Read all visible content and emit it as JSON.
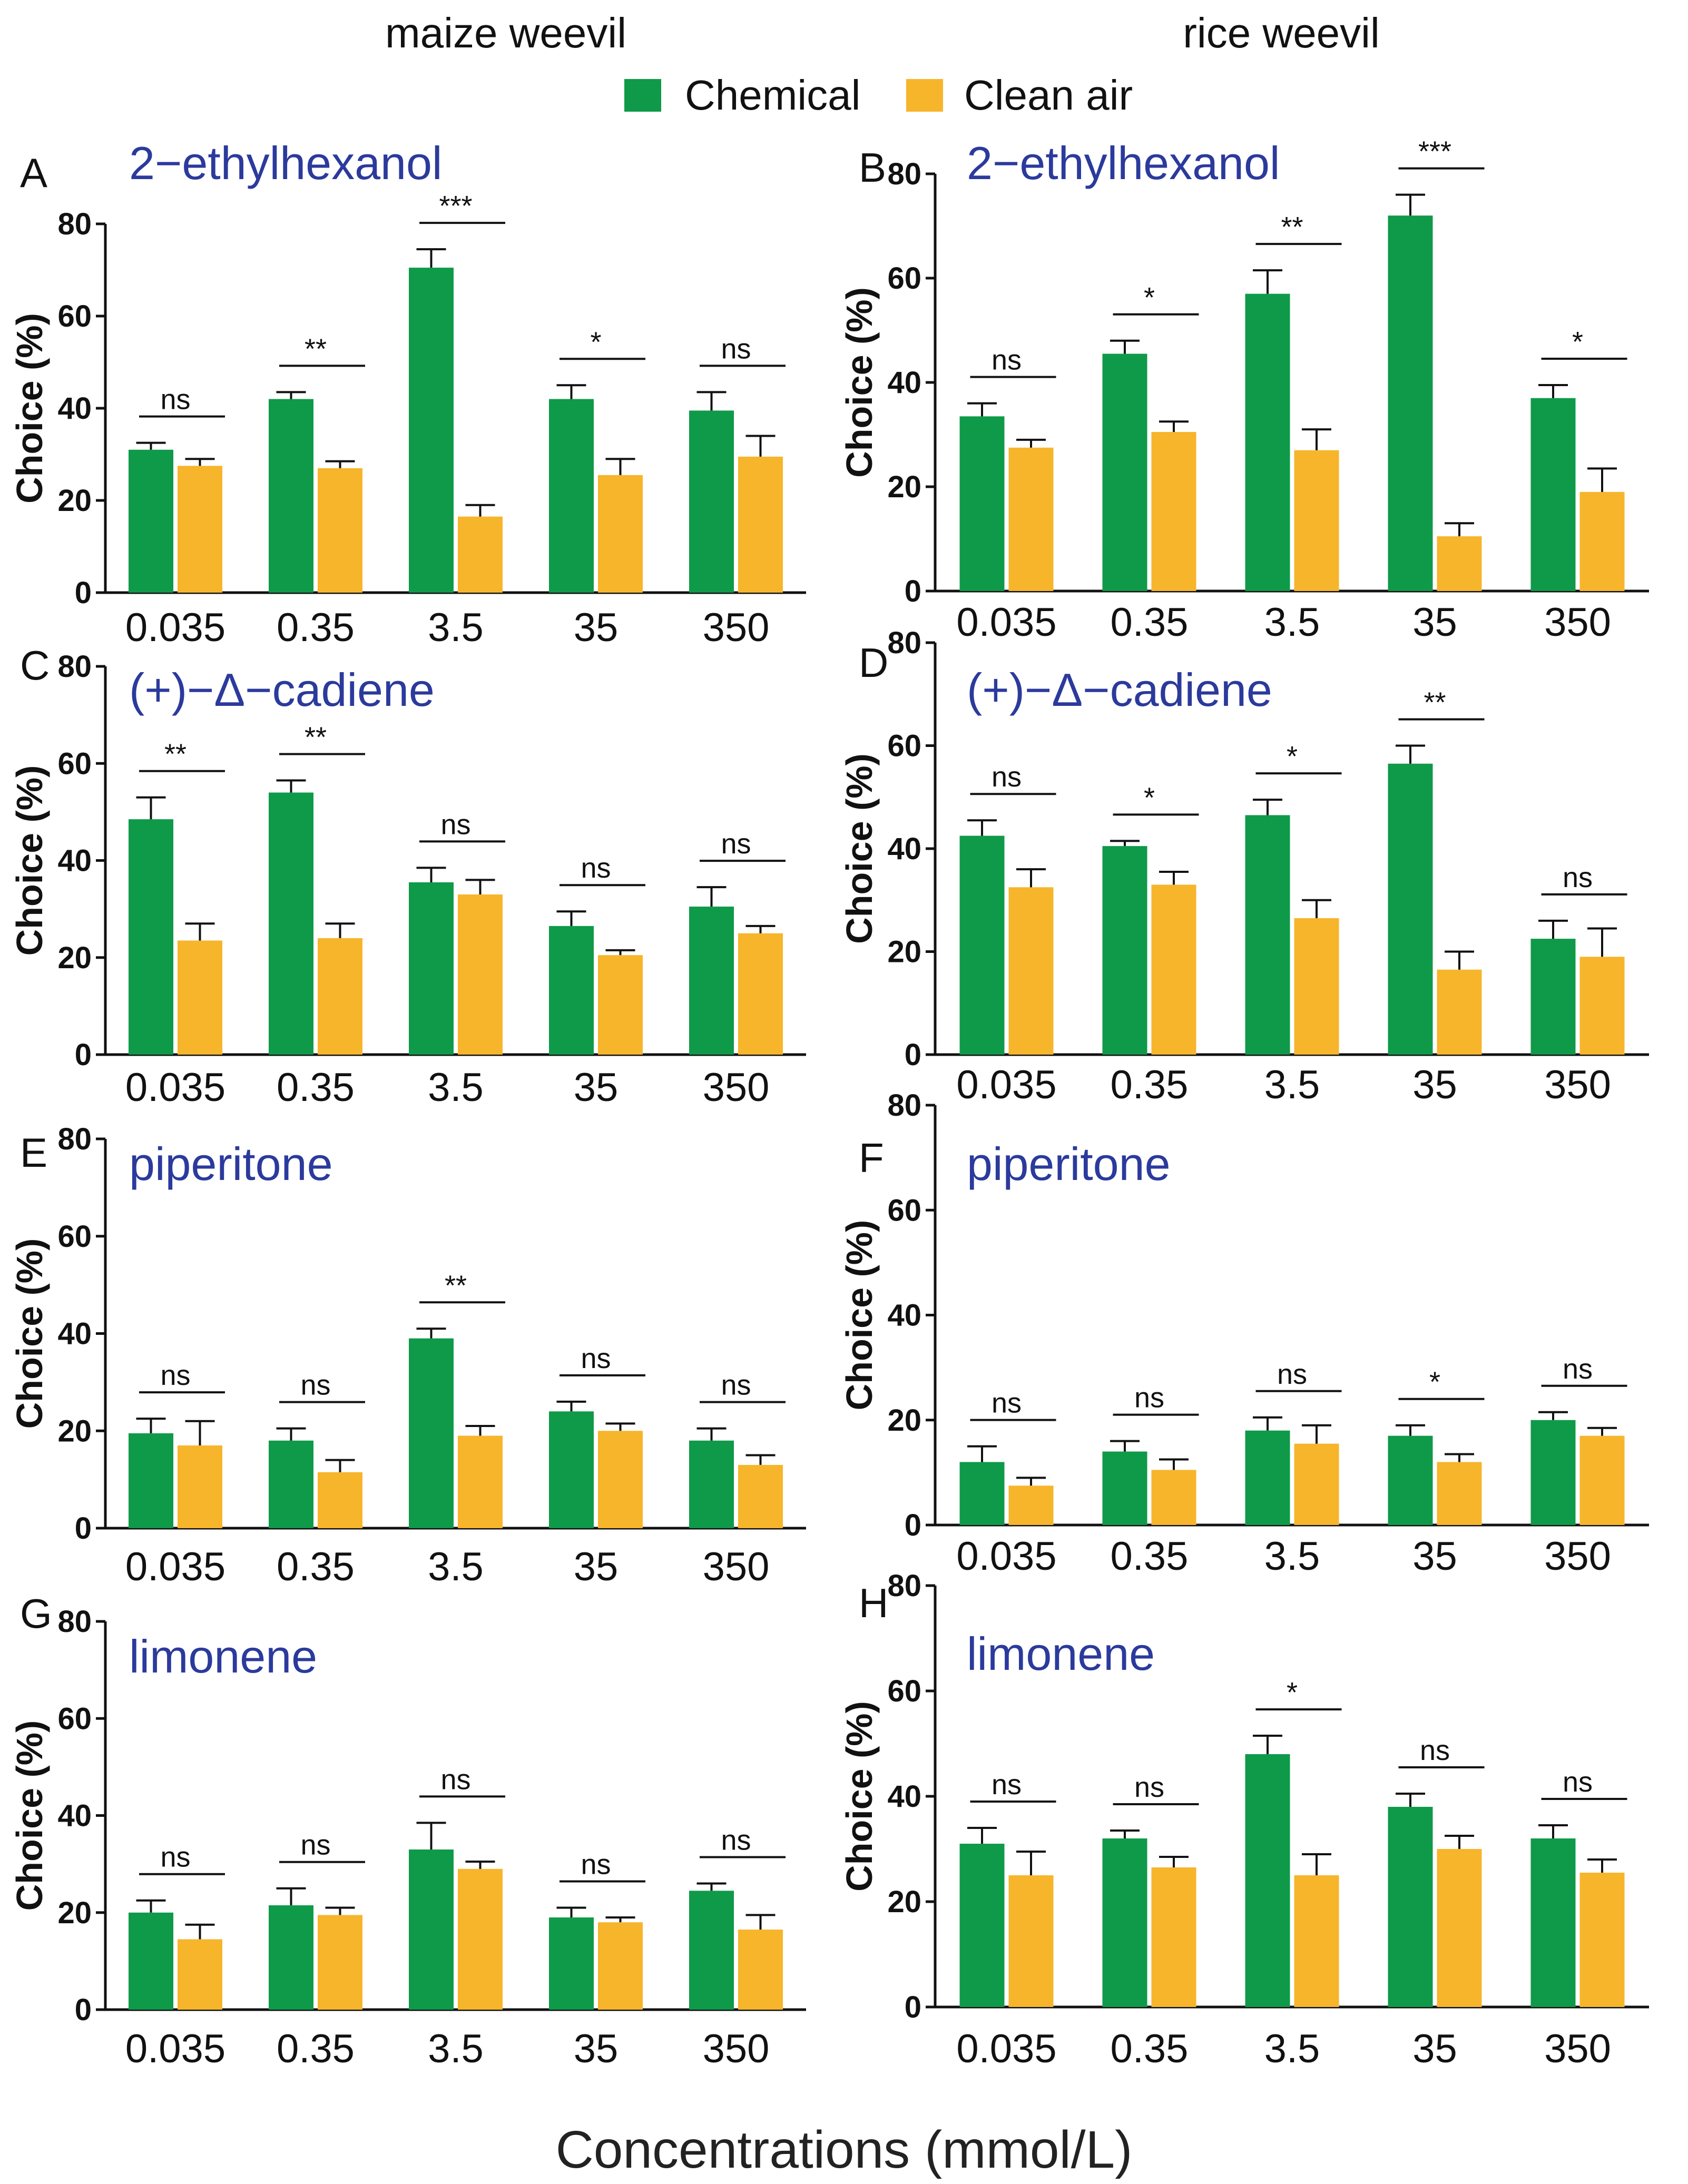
{
  "column_titles": [
    "maize weevil",
    "rice weevil"
  ],
  "legend": [
    {
      "label": "Chemical",
      "color": "#0f9a49"
    },
    {
      "label": "Clean air",
      "color": "#f7b52c"
    }
  ],
  "x_axis_title": "Concentrations (mmol/L)",
  "chart_data": [
    {
      "panel": "A",
      "type": "bar",
      "chemical": "2−ethylhexanol",
      "insect": "maize weevil",
      "categories": [
        "0.035",
        "0.35",
        "3.5",
        "35",
        "350"
      ],
      "ylabel": "Choice (%)",
      "ylim": [
        0,
        80
      ],
      "yticks": [
        0,
        20,
        40,
        60,
        80
      ],
      "series": [
        {
          "name": "Chemical",
          "values": [
            31,
            42,
            70.5,
            42,
            39.5
          ],
          "errors": [
            1.5,
            1.5,
            4,
            3,
            4
          ]
        },
        {
          "name": "Clean air",
          "values": [
            27.5,
            27,
            16.5,
            25.5,
            29.5
          ],
          "errors": [
            1.5,
            1.5,
            2.5,
            3.5,
            4.5
          ]
        }
      ],
      "significance": [
        "ns",
        "**",
        "***",
        "*",
        "ns"
      ]
    },
    {
      "panel": "B",
      "type": "bar",
      "chemical": "2−ethylhexanol",
      "insect": "rice weevil",
      "categories": [
        "0.035",
        "0.35",
        "3.5",
        "35",
        "350"
      ],
      "ylabel": "Choice (%)",
      "ylim": [
        0,
        80
      ],
      "yticks": [
        0,
        20,
        40,
        60,
        80
      ],
      "series": [
        {
          "name": "Chemical",
          "values": [
            33.5,
            45.5,
            57,
            72,
            37
          ],
          "errors": [
            2.5,
            2.5,
            4.5,
            4,
            2.5
          ]
        },
        {
          "name": "Clean air",
          "values": [
            27.5,
            30.5,
            27,
            10.5,
            19
          ],
          "errors": [
            1.5,
            2,
            4,
            2.5,
            4.5
          ]
        }
      ],
      "significance": [
        "ns",
        "*",
        "**",
        "***",
        "*"
      ]
    },
    {
      "panel": "C",
      "type": "bar",
      "chemical": "(+)−Δ−cadiene",
      "insect": "maize weevil",
      "categories": [
        "0.035",
        "0.35",
        "3.5",
        "35",
        "350"
      ],
      "ylabel": "Choice (%)",
      "ylim": [
        0,
        80
      ],
      "yticks": [
        0,
        20,
        40,
        60,
        80
      ],
      "series": [
        {
          "name": "Chemical",
          "values": [
            48.5,
            54,
            35.5,
            26.5,
            30.5
          ],
          "errors": [
            4.5,
            2.5,
            3,
            3,
            4
          ]
        },
        {
          "name": "Clean air",
          "values": [
            23.5,
            24,
            33,
            20.5,
            25
          ],
          "errors": [
            3.5,
            3,
            3,
            1,
            1.5
          ]
        }
      ],
      "significance": [
        "**",
        "**",
        "ns",
        "ns",
        "ns"
      ]
    },
    {
      "panel": "D",
      "type": "bar",
      "chemical": "(+)−Δ−cadiene",
      "insect": "rice weevil",
      "categories": [
        "0.035",
        "0.35",
        "3.5",
        "35",
        "350"
      ],
      "ylabel": "Choice (%)",
      "ylim": [
        0,
        80
      ],
      "yticks": [
        0,
        20,
        40,
        60,
        80
      ],
      "series": [
        {
          "name": "Chemical",
          "values": [
            42.5,
            40.5,
            46.5,
            56.5,
            22.5
          ],
          "errors": [
            3,
            1,
            3,
            3.5,
            3.5
          ]
        },
        {
          "name": "Clean air",
          "values": [
            32.5,
            33,
            26.5,
            16.5,
            19
          ],
          "errors": [
            3.5,
            2.5,
            3.5,
            3.5,
            5.5
          ]
        }
      ],
      "significance": [
        "ns",
        "*",
        "*",
        "**",
        "ns"
      ]
    },
    {
      "panel": "E",
      "type": "bar",
      "chemical": "piperitone",
      "insect": "maize weevil",
      "categories": [
        "0.035",
        "0.35",
        "3.5",
        "35",
        "350"
      ],
      "ylabel": "Choice (%)",
      "ylim": [
        0,
        80
      ],
      "yticks": [
        0,
        20,
        40,
        60,
        80
      ],
      "series": [
        {
          "name": "Chemical",
          "values": [
            19.5,
            18,
            39,
            24,
            18
          ],
          "errors": [
            3,
            2.5,
            2,
            2,
            2.5
          ]
        },
        {
          "name": "Clean air",
          "values": [
            17,
            11.5,
            19,
            20,
            13
          ],
          "errors": [
            5,
            2.5,
            2,
            1.5,
            2
          ]
        }
      ],
      "significance": [
        "ns",
        "ns",
        "**",
        "ns",
        "ns"
      ]
    },
    {
      "panel": "F",
      "type": "bar",
      "chemical": "piperitone",
      "insect": "rice weevil",
      "categories": [
        "0.035",
        "0.35",
        "3.5",
        "35",
        "350"
      ],
      "ylabel": "Choice (%)",
      "ylim": [
        0,
        80
      ],
      "yticks": [
        0,
        20,
        40,
        60,
        80
      ],
      "series": [
        {
          "name": "Chemical",
          "values": [
            12,
            14,
            18,
            17,
            20
          ],
          "errors": [
            3,
            2,
            2.5,
            2,
            1.5
          ]
        },
        {
          "name": "Clean air",
          "values": [
            7.5,
            10.5,
            15.5,
            12,
            17
          ],
          "errors": [
            1.5,
            2,
            3.5,
            1.5,
            1.5
          ]
        }
      ],
      "significance": [
        "ns",
        "ns",
        "ns",
        "*",
        "ns"
      ]
    },
    {
      "panel": "G",
      "type": "bar",
      "chemical": "limonene",
      "insect": "maize weevil",
      "categories": [
        "0.035",
        "0.35",
        "3.5",
        "35",
        "350"
      ],
      "ylabel": "Choice (%)",
      "ylim": [
        0,
        80
      ],
      "yticks": [
        0,
        20,
        40,
        60,
        80
      ],
      "series": [
        {
          "name": "Chemical",
          "values": [
            20,
            21.5,
            33,
            19,
            24.5
          ],
          "errors": [
            2.5,
            3.5,
            5.5,
            2,
            1.5
          ]
        },
        {
          "name": "Clean air",
          "values": [
            14.5,
            19.5,
            29,
            18,
            16.5
          ],
          "errors": [
            3,
            1.5,
            1.5,
            1,
            3
          ]
        }
      ],
      "significance": [
        "ns",
        "ns",
        "ns",
        "ns",
        "ns"
      ]
    },
    {
      "panel": "H",
      "type": "bar",
      "chemical": "limonene",
      "insect": "rice weevil",
      "categories": [
        "0.035",
        "0.35",
        "3.5",
        "35",
        "350"
      ],
      "ylabel": "Choice (%)",
      "ylim": [
        0,
        80
      ],
      "yticks": [
        0,
        20,
        40,
        60,
        80
      ],
      "series": [
        {
          "name": "Chemical",
          "values": [
            31,
            32,
            48,
            38,
            32
          ],
          "errors": [
            3,
            1.5,
            3.5,
            2.5,
            2.5
          ]
        },
        {
          "name": "Clean air",
          "values": [
            25,
            26.5,
            25,
            30,
            25.5
          ],
          "errors": [
            4.5,
            2,
            4,
            2.5,
            2.5
          ]
        }
      ],
      "significance": [
        "ns",
        "ns",
        "*",
        "ns",
        "ns"
      ]
    }
  ]
}
